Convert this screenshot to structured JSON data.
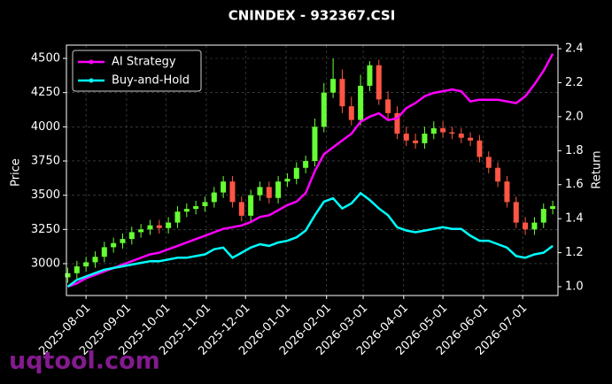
{
  "chart_data": {
    "type": "candlestick",
    "title": "CNINDEX - 932367.CSI",
    "y_label": "Price",
    "y2_label": "Return",
    "watermark": "uqtool.com",
    "up_color": "#66ff33",
    "down_color": "#ff5544",
    "x": [
      "2025-07-18",
      "2025-07-25",
      "2025-08-01",
      "2025-08-08",
      "2025-08-15",
      "2025-08-22",
      "2025-08-29",
      "2025-09-05",
      "2025-09-12",
      "2025-09-19",
      "2025-09-26",
      "2025-10-03",
      "2025-10-10",
      "2025-10-17",
      "2025-10-24",
      "2025-10-31",
      "2025-11-07",
      "2025-11-14",
      "2025-11-21",
      "2025-11-28",
      "2025-12-05",
      "2025-12-12",
      "2025-12-19",
      "2025-12-26",
      "2026-01-02",
      "2026-01-09",
      "2026-01-16",
      "2026-01-23",
      "2026-01-30",
      "2026-02-06",
      "2026-02-13",
      "2026-02-20",
      "2026-02-27",
      "2026-03-06",
      "2026-03-13",
      "2026-03-20",
      "2026-03-27",
      "2026-04-03",
      "2026-04-10",
      "2026-04-17",
      "2026-04-24",
      "2026-05-01",
      "2026-05-08",
      "2026-05-15",
      "2026-05-22",
      "2026-05-29",
      "2026-06-05",
      "2026-06-12",
      "2026-06-19",
      "2026-06-26",
      "2026-07-03",
      "2026-07-10",
      "2026-07-17",
      "2026-07-24"
    ],
    "open": [
      2900,
      2930,
      2980,
      3010,
      3050,
      3120,
      3150,
      3180,
      3230,
      3250,
      3280,
      3260,
      3300,
      3380,
      3400,
      3420,
      3450,
      3520,
      3600,
      3450,
      3350,
      3500,
      3560,
      3480,
      3600,
      3620,
      3700,
      3750,
      4000,
      4250,
      4350,
      4150,
      4050,
      4300,
      4450,
      4200,
      4100,
      3950,
      3900,
      3880,
      3950,
      3990,
      3960,
      3950,
      3920,
      3900,
      3780,
      3700,
      3600,
      3450,
      3300,
      3250,
      3300,
      3400
    ],
    "high": [
      2970,
      3020,
      3050,
      3090,
      3160,
      3190,
      3220,
      3270,
      3290,
      3320,
      3320,
      3340,
      3420,
      3440,
      3460,
      3490,
      3560,
      3640,
      3640,
      3490,
      3540,
      3600,
      3600,
      3640,
      3660,
      3740,
      3790,
      4060,
      4320,
      4500,
      4420,
      4220,
      4380,
      4480,
      4490,
      4260,
      4150,
      4000,
      3950,
      4000,
      4040,
      4040,
      4000,
      3990,
      3960,
      3940,
      3820,
      3740,
      3640,
      3490,
      3340,
      3340,
      3440,
      3460
    ],
    "low": [
      2860,
      2890,
      2940,
      2970,
      3010,
      3080,
      3110,
      3140,
      3190,
      3210,
      3220,
      3220,
      3260,
      3340,
      3360,
      3380,
      3410,
      3480,
      3410,
      3310,
      3310,
      3460,
      3440,
      3440,
      3560,
      3580,
      3660,
      3710,
      3960,
      4210,
      4100,
      4010,
      4010,
      4260,
      4160,
      4060,
      3910,
      3860,
      3840,
      3840,
      3910,
      3920,
      3910,
      3880,
      3860,
      3740,
      3660,
      3560,
      3410,
      3260,
      3210,
      3210,
      3260,
      3360
    ],
    "close": [
      2930,
      2980,
      3010,
      3050,
      3120,
      3150,
      3180,
      3230,
      3250,
      3280,
      3260,
      3300,
      3380,
      3400,
      3420,
      3450,
      3520,
      3600,
      3450,
      3350,
      3500,
      3560,
      3480,
      3600,
      3620,
      3700,
      3750,
      4000,
      4250,
      4350,
      4150,
      4050,
      4300,
      4450,
      4200,
      4100,
      3950,
      3900,
      3880,
      3950,
      3990,
      3960,
      3950,
      3920,
      3900,
      3780,
      3700,
      3600,
      3450,
      3300,
      3250,
      3300,
      3400,
      3420
    ],
    "series": [
      {
        "name": "AI Strategy",
        "color": "#ff00ff",
        "axis": "y2",
        "values": [
          1.0,
          1.02,
          1.05,
          1.07,
          1.09,
          1.11,
          1.13,
          1.15,
          1.17,
          1.19,
          1.2,
          1.22,
          1.24,
          1.26,
          1.28,
          1.3,
          1.32,
          1.34,
          1.35,
          1.36,
          1.38,
          1.41,
          1.42,
          1.45,
          1.48,
          1.5,
          1.55,
          1.68,
          1.78,
          1.82,
          1.86,
          1.9,
          1.97,
          2.0,
          2.02,
          1.98,
          1.99,
          2.05,
          2.08,
          2.12,
          2.14,
          2.15,
          2.16,
          2.15,
          2.09,
          2.1,
          2.1,
          2.1,
          2.09,
          2.08,
          2.12,
          2.19,
          2.27,
          2.37
        ]
      },
      {
        "name": "Buy-and-Hold",
        "color": "#00ffff",
        "axis": "y2",
        "values": [
          1.0,
          1.04,
          1.06,
          1.08,
          1.1,
          1.11,
          1.12,
          1.13,
          1.14,
          1.15,
          1.15,
          1.16,
          1.17,
          1.17,
          1.18,
          1.19,
          1.22,
          1.23,
          1.17,
          1.2,
          1.23,
          1.25,
          1.24,
          1.26,
          1.27,
          1.29,
          1.33,
          1.42,
          1.5,
          1.52,
          1.46,
          1.49,
          1.55,
          1.51,
          1.46,
          1.42,
          1.35,
          1.33,
          1.32,
          1.33,
          1.34,
          1.35,
          1.34,
          1.34,
          1.3,
          1.27,
          1.27,
          1.25,
          1.23,
          1.18,
          1.17,
          1.19,
          1.2,
          1.24
        ]
      }
    ],
    "xlim": [
      "2025-07-17",
      "2026-07-28"
    ],
    "xticks": [
      "2025-08-01",
      "2025-09-01",
      "2025-10-01",
      "2025-11-01",
      "2025-12-01",
      "2026-01-01",
      "2026-02-01",
      "2026-03-01",
      "2026-04-01",
      "2026-05-01",
      "2026-06-01",
      "2026-07-01"
    ],
    "ylim": [
      2767,
      4597
    ],
    "yticks": [
      3000,
      3250,
      3500,
      3750,
      4000,
      4250,
      4500
    ],
    "y2lim": [
      0.948,
      2.421
    ],
    "y2ticks": [
      {
        "value": 1,
        "label": "1.0"
      },
      1.2,
      1.4,
      1.6,
      1.8,
      {
        "value": 2,
        "label": "2.0"
      },
      2.2,
      2.4
    ],
    "grid": true,
    "legend": "upper-left"
  }
}
